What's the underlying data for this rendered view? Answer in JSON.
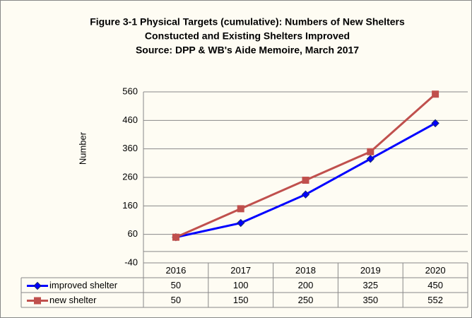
{
  "chart_data": {
    "type": "line",
    "title": [
      "Figure 3-1 Physical Targets (cumulative): Numbers of New Shelters",
      "Constucted and Existing Shelters Improved",
      "Source: DPP & WB's Aide Memoire, March 2017"
    ],
    "ylabel": "Number",
    "categories": [
      "2016",
      "2017",
      "2018",
      "2019",
      "2020"
    ],
    "series": [
      {
        "name": "improved shelter",
        "color": "#0000ff",
        "marker": "diamond",
        "values": [
          50,
          100,
          200,
          325,
          450
        ]
      },
      {
        "name": "new shelter",
        "color": "#c0504d",
        "marker": "square",
        "values": [
          50,
          150,
          250,
          350,
          552
        ]
      }
    ],
    "ylim": [
      -40,
      560
    ],
    "yticks": [
      -40,
      60,
      160,
      260,
      360,
      460,
      560
    ],
    "grid": true,
    "data_table": true
  }
}
